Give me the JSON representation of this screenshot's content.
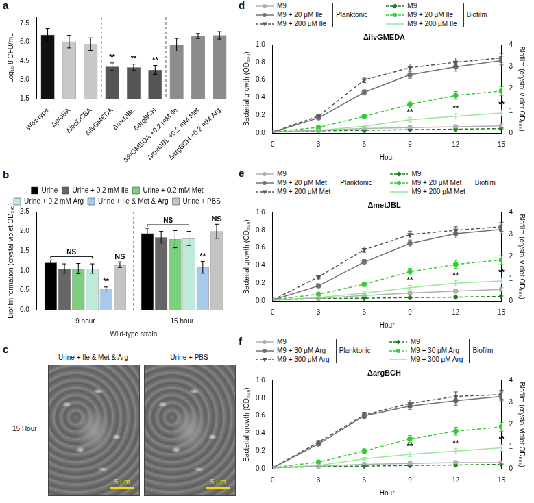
{
  "chart_data": [
    {
      "panel": "a",
      "type": "bar",
      "y_label": "Log₁₀ 8 CFU/mL",
      "categories": [
        "Wild-type",
        "ΔproBA",
        "ΔleuDCBA",
        "ΔilvGMEDA",
        "ΔmetJBL",
        "ΔargBCH",
        "ΔilvGMEDA +0.2 mM Ile",
        "ΔmetJBL +0.2 mM Met",
        "ΔargBCH +0.2 mM Arg"
      ],
      "values": [
        6.6,
        6.05,
        5.85,
        4.05,
        4.0,
        3.8,
        5.8,
        6.5,
        6.55
      ],
      "errors": [
        0.5,
        0.5,
        0.5,
        0.3,
        0.25,
        0.35,
        0.5,
        0.2,
        0.3
      ],
      "colors": [
        "#111111",
        "#c8c8c8",
        "#c8c8c8",
        "#555555",
        "#555555",
        "#555555",
        "#8c8c8c",
        "#8c8c8c",
        "#8c8c8c"
      ],
      "point_labels": [
        null,
        null,
        null,
        "**",
        "**",
        "**",
        null,
        null,
        null
      ],
      "ylim": [
        1.5,
        8
      ],
      "yticks": [
        1.5,
        {
          "value": 3,
          "label": "3.0"
        },
        4.5,
        {
          "value": 6,
          "label": "6.0"
        },
        7.5
      ],
      "grid": false
    },
    {
      "panel": "b",
      "type": "bar",
      "y_label": "Biofilm formation (crystal violet OD₅₉₅)",
      "x_label": "Wild-type strain",
      "categories": [
        "9 hour",
        "15 hour"
      ],
      "series": [
        {
          "name": "Urine",
          "color": "#000000",
          "values": [
            1.2,
            1.95
          ],
          "errors": [
            0.07,
            0.13
          ]
        },
        {
          "name": "Urine + 0.2 mM Ile",
          "color": "#666666",
          "values": [
            1.05,
            1.85
          ],
          "errors": [
            0.12,
            0.15
          ]
        },
        {
          "name": "Urine + 0.2 mM Met",
          "color": "#7ccf7c",
          "values": [
            1.05,
            1.8
          ],
          "errors": [
            0.13,
            0.22
          ]
        },
        {
          "name": "Urine + 0.2 mM Arg",
          "color": "#bfeadb",
          "values": [
            1.05,
            1.82
          ],
          "errors": [
            0.12,
            0.18
          ]
        },
        {
          "name": "Urine + Ile & Met & Arg",
          "color": "#a8c8ec",
          "values": [
            0.53,
            1.08
          ],
          "errors": [
            0.05,
            0.15
          ],
          "point_labels": [
            "**",
            "**"
          ]
        },
        {
          "name": "Urine + PBS",
          "color": "#c4c4c4",
          "values": [
            1.15,
            2.0
          ],
          "errors": [
            0.07,
            0.18
          ],
          "point_labels": [
            "NS",
            "NS"
          ]
        }
      ],
      "brackets": [
        {
          "category": "9 hour",
          "from": "Urine",
          "to": "Urine + 0.2 mM Arg",
          "text": "NS"
        },
        {
          "category": "15 hour",
          "from": "Urine",
          "to": "Urine + 0.2 mM Arg",
          "text": "NS"
        }
      ],
      "ylim": [
        0,
        2.5
      ],
      "yticks": [
        {
          "value": 0,
          "label": "0.0"
        },
        0.5,
        {
          "value": 1,
          "label": "1.0"
        },
        1.5,
        {
          "value": 2,
          "label": "2.0"
        },
        2.5
      ],
      "grid": false,
      "legend": "top"
    },
    {
      "panel": "c",
      "type": "image",
      "row_label": "15 Hour",
      "images": [
        {
          "title": "Urine + Ile & Met & Arg",
          "scale_bar": "5 μm"
        },
        {
          "title": "Urine + PBS",
          "scale_bar": "5 μm"
        }
      ]
    },
    {
      "panel": "d",
      "type": "line",
      "title": "ΔilvGMEDA",
      "x_label": "Hour",
      "y_label": "Bacterial growth (OD₆₀₀)",
      "y2_label": "Biofilm (crystal violet OD₅₉₅)",
      "x": [
        0,
        3,
        6,
        9,
        12,
        15
      ],
      "series": [
        {
          "name": "M9",
          "group": "Planktonic",
          "color": "#b0b0b0",
          "marker": "circle",
          "line_style": "solid",
          "values": [
            0.01,
            0.03,
            0.05,
            0.06,
            0.07,
            0.08
          ],
          "errors": [
            0,
            0.01,
            0.01,
            0.02,
            0.02,
            0.02
          ]
        },
        {
          "name": "M9 + 20 μM Ile",
          "group": "Planktonic",
          "color": "#707070",
          "marker": "circle",
          "line_style": "solid",
          "values": [
            0.01,
            0.17,
            0.46,
            0.66,
            0.75,
            0.82
          ],
          "errors": [
            0,
            0.01,
            0.03,
            0.04,
            0.05,
            0.05
          ]
        },
        {
          "name": "M9 + 200 μM Ile",
          "group": "Planktonic",
          "color": "#555555",
          "marker": "triangle-down",
          "line_style": "dashed",
          "values": [
            0.01,
            0.19,
            0.6,
            0.74,
            0.8,
            0.85
          ],
          "errors": [
            0,
            0.01,
            0.03,
            0.04,
            0.05,
            0.05
          ]
        },
        {
          "name": "M9",
          "group": "Biofilm",
          "color": "#1e7a1e",
          "marker": "diamond",
          "line_style": "dashed",
          "axis": "y2",
          "values": [
            0.05,
            0.1,
            0.12,
            0.15,
            0.17,
            0.2
          ],
          "errors": [
            0,
            0.02,
            0.02,
            0.02,
            0.02,
            0.02
          ]
        },
        {
          "name": "M9 + 20 μM Ile",
          "group": "Biofilm",
          "color": "#33cc33",
          "marker": "circle",
          "line_style": "dashed",
          "axis": "y2",
          "values": [
            0.05,
            0.25,
            0.75,
            1.3,
            1.7,
            1.9
          ],
          "errors": [
            0,
            0.05,
            0.1,
            0.15,
            0.18,
            0.2
          ]
        },
        {
          "name": "M9 + 200 μM Ile",
          "group": "Biofilm",
          "color": "#99e699",
          "marker": "none",
          "line_style": "solid",
          "axis": "y2",
          "values": [
            0.05,
            0.12,
            0.3,
            0.6,
            0.75,
            0.9
          ],
          "errors": [
            0,
            0.03,
            0.06,
            0.1,
            0.12,
            0.15
          ],
          "point_labels": [
            null,
            null,
            null,
            "**",
            "**",
            "**"
          ]
        }
      ],
      "xlim": [
        0,
        15
      ],
      "xticks": [
        0,
        3,
        6,
        9,
        12,
        15
      ],
      "ylim": [
        0,
        1
      ],
      "yticks": [
        {
          "value": 0,
          "label": "0.0"
        },
        0.2,
        0.4,
        0.6,
        0.8,
        {
          "value": 1,
          "label": "1.0"
        }
      ],
      "y2lim": [
        0,
        4
      ],
      "y2ticks": [
        0,
        1,
        2,
        3,
        4
      ],
      "grid": false,
      "legend": "top"
    },
    {
      "panel": "e",
      "type": "line",
      "title": "ΔmetJBL",
      "x_label": "Hour",
      "y_label": "Bacterial growth (OD₆₀₀)",
      "y2_label": "Biofilm (crystal violet OD₅₉₅)",
      "x": [
        0,
        3,
        6,
        9,
        12,
        15
      ],
      "series": [
        {
          "name": "M9",
          "group": "Planktonic",
          "color": "#b0b0b0",
          "marker": "circle",
          "line_style": "solid",
          "values": [
            0.01,
            0.03,
            0.06,
            0.09,
            0.11,
            0.13
          ],
          "errors": [
            0,
            0.01,
            0.01,
            0.02,
            0.02,
            0.02
          ]
        },
        {
          "name": "M9 + 20 μM Met",
          "group": "Planktonic",
          "color": "#707070",
          "marker": "circle",
          "line_style": "solid",
          "values": [
            0.01,
            0.17,
            0.44,
            0.65,
            0.76,
            0.81
          ],
          "errors": [
            0,
            0.02,
            0.03,
            0.04,
            0.05,
            0.05
          ]
        },
        {
          "name": "M9 + 200 μM Met",
          "group": "Planktonic",
          "color": "#555555",
          "marker": "triangle-down",
          "line_style": "dashed",
          "values": [
            0.01,
            0.27,
            0.58,
            0.75,
            0.8,
            0.84
          ],
          "errors": [
            0,
            0.02,
            0.03,
            0.04,
            0.04,
            0.05
          ]
        },
        {
          "name": "M9",
          "group": "Biofilm",
          "color": "#1e7a1e",
          "marker": "diamond",
          "line_style": "dashed",
          "axis": "y2",
          "values": [
            0.04,
            0.1,
            0.12,
            0.15,
            0.17,
            0.2
          ],
          "errors": [
            0,
            0.02,
            0.02,
            0.02,
            0.02,
            0.02
          ]
        },
        {
          "name": "M9 + 20 μM Met",
          "group": "Biofilm",
          "color": "#33cc33",
          "marker": "circle",
          "line_style": "dashed",
          "axis": "y2",
          "values": [
            0.05,
            0.3,
            0.75,
            1.32,
            1.65,
            1.85
          ],
          "errors": [
            0,
            0.05,
            0.1,
            0.15,
            0.18,
            0.2
          ]
        },
        {
          "name": "M9 + 200 μM Met",
          "group": "Biofilm",
          "color": "#99e699",
          "marker": "none",
          "line_style": "solid",
          "axis": "y2",
          "values": [
            0.05,
            0.15,
            0.35,
            0.6,
            0.8,
            0.9
          ],
          "errors": [
            0,
            0.03,
            0.06,
            0.1,
            0.12,
            0.15
          ],
          "point_labels": [
            null,
            null,
            null,
            "**",
            "**",
            "**"
          ]
        }
      ],
      "xlim": [
        0,
        15
      ],
      "xticks": [
        0,
        3,
        6,
        9,
        12,
        15
      ],
      "ylim": [
        0,
        1
      ],
      "yticks": [
        {
          "value": 0,
          "label": "0.0"
        },
        0.2,
        0.4,
        0.6,
        0.8,
        {
          "value": 1,
          "label": "1.0"
        }
      ],
      "y2lim": [
        0,
        4
      ],
      "y2ticks": [
        0,
        1,
        2,
        3,
        4
      ],
      "grid": false,
      "legend": "top"
    },
    {
      "panel": "f",
      "type": "line",
      "title": "ΔargBCH",
      "x_label": "Hour",
      "y_label": "Bacterial growth (OD₆₀₀)",
      "y2_label": "Biofilm (crystal violet OD₅₉₅)",
      "x": [
        0,
        3,
        6,
        9,
        12,
        15
      ],
      "series": [
        {
          "name": "M9",
          "group": "Planktonic",
          "color": "#b0b0b0",
          "marker": "circle",
          "line_style": "solid",
          "values": [
            0.01,
            0.03,
            0.05,
            0.06,
            0.07,
            0.07
          ],
          "errors": [
            0,
            0.01,
            0.01,
            0.02,
            0.02,
            0.02
          ]
        },
        {
          "name": "M9 + 30 μM Arg",
          "group": "Planktonic",
          "color": "#707070",
          "marker": "circle",
          "line_style": "solid",
          "values": [
            0.01,
            0.28,
            0.6,
            0.71,
            0.77,
            0.82
          ],
          "errors": [
            0,
            0.02,
            0.03,
            0.04,
            0.05,
            0.05
          ]
        },
        {
          "name": "M9 + 300 μM Arg",
          "group": "Planktonic",
          "color": "#555555",
          "marker": "triangle-down",
          "line_style": "dashed",
          "values": [
            0.01,
            0.3,
            0.61,
            0.74,
            0.82,
            0.84
          ],
          "errors": [
            0,
            0.02,
            0.03,
            0.04,
            0.05,
            0.05
          ]
        },
        {
          "name": "M9",
          "group": "Biofilm",
          "color": "#1e7a1e",
          "marker": "diamond",
          "line_style": "dashed",
          "axis": "y2",
          "values": [
            0.04,
            0.1,
            0.12,
            0.15,
            0.17,
            0.2
          ],
          "errors": [
            0,
            0.02,
            0.02,
            0.02,
            0.02,
            0.02
          ]
        },
        {
          "name": "M9 + 30 μM Arg",
          "group": "Biofilm",
          "color": "#33cc33",
          "marker": "circle",
          "line_style": "dashed",
          "axis": "y2",
          "values": [
            0.05,
            0.3,
            0.8,
            1.35,
            1.7,
            1.9
          ],
          "errors": [
            0,
            0.05,
            0.1,
            0.15,
            0.18,
            0.2
          ]
        },
        {
          "name": "M9 + 300 μM Arg",
          "group": "Biofilm",
          "color": "#99e699",
          "marker": "none",
          "line_style": "solid",
          "axis": "y2",
          "values": [
            0.05,
            0.15,
            0.45,
            0.65,
            0.8,
            0.95
          ],
          "errors": [
            0,
            0.03,
            0.06,
            0.1,
            0.12,
            0.15
          ],
          "point_labels": [
            null,
            null,
            null,
            "**",
            "**",
            "**"
          ]
        }
      ],
      "xlim": [
        0,
        15
      ],
      "xticks": [
        0,
        3,
        6,
        9,
        12,
        15
      ],
      "ylim": [
        0,
        1
      ],
      "yticks": [
        {
          "value": 0,
          "label": "0.0"
        },
        0.2,
        0.4,
        0.6,
        0.8,
        {
          "value": 1,
          "label": "1.0"
        }
      ],
      "y2lim": [
        0,
        4
      ],
      "y2ticks": [
        0,
        1,
        2,
        3,
        4
      ],
      "grid": false,
      "legend": "top"
    }
  ]
}
